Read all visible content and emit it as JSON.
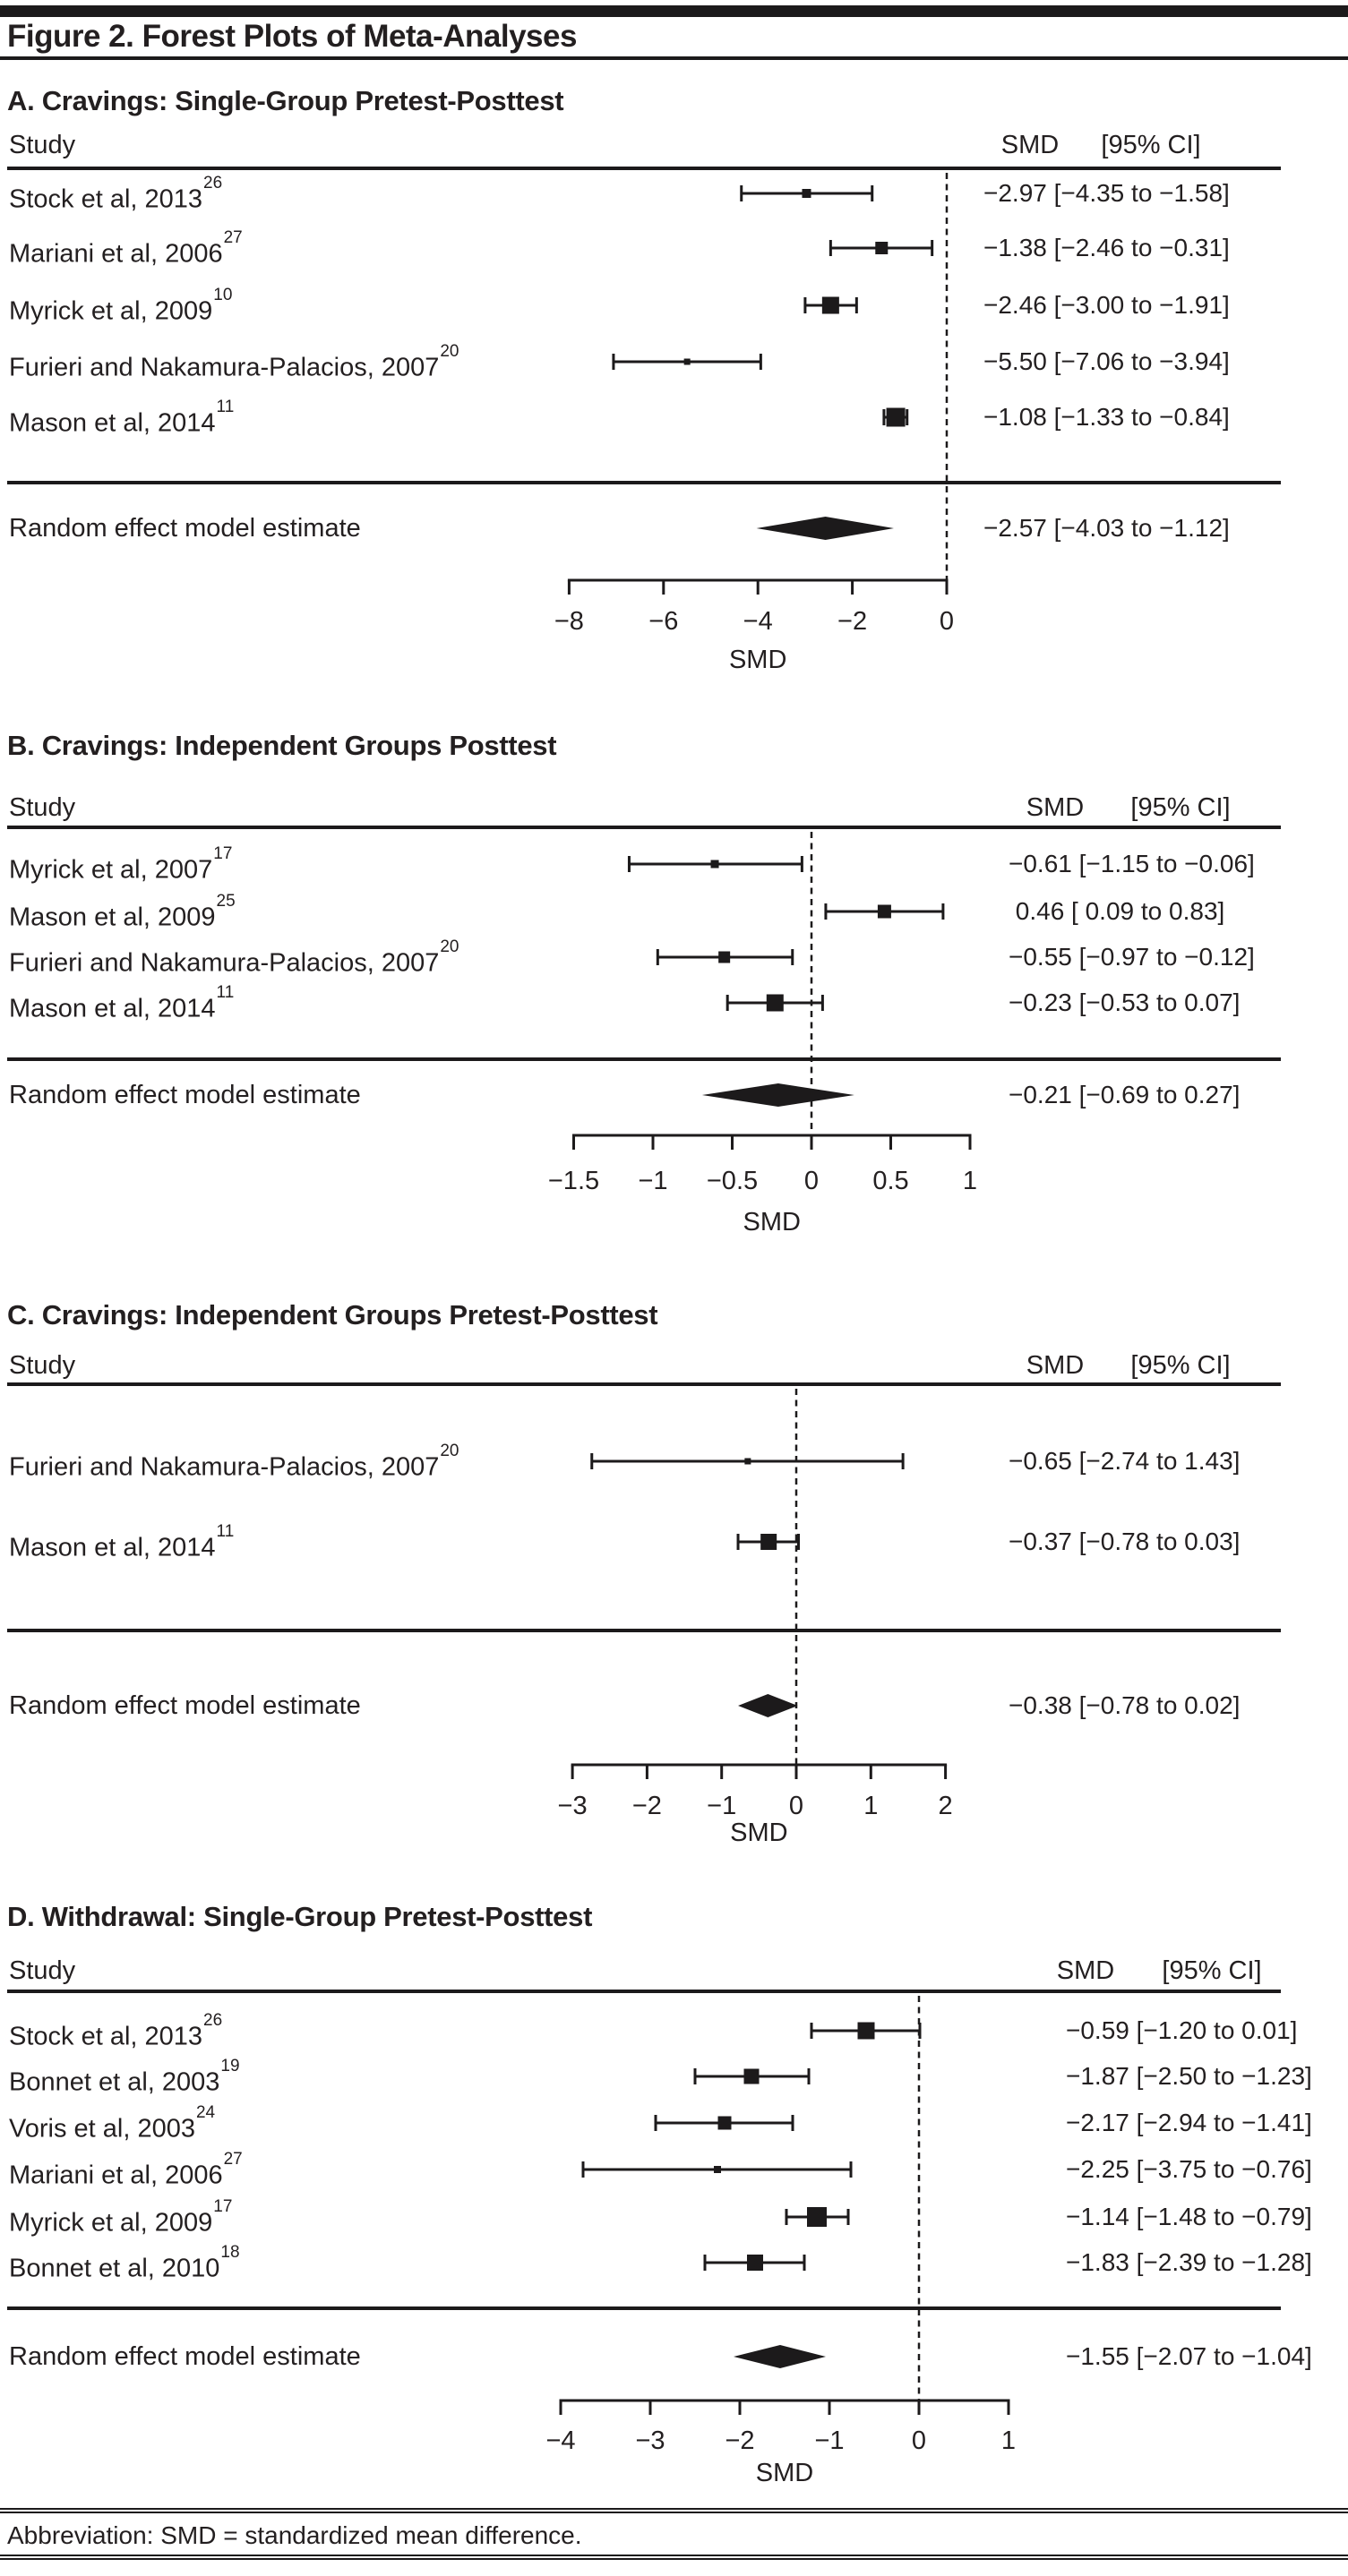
{
  "figure": {
    "title": "Figure 2. Forest Plots of Meta-Analyses",
    "footnote": "Abbreviation: SMD = standardized mean difference."
  },
  "colors": {
    "ink": "#231f20",
    "background": "#ffffff"
  },
  "chart_data": [
    {
      "type": "forest",
      "id": "A",
      "title": "A. Cravings: Single-Group Pretest-Posttest",
      "columns": {
        "study": "Study",
        "smd": "SMD",
        "ci": "[95% CI]"
      },
      "xlabel": "SMD",
      "xlim": [
        -8,
        0
      ],
      "ticks": [
        -8,
        -6,
        -4,
        -2,
        0
      ],
      "tick_labels": [
        "−8",
        "−6",
        "−4",
        "−2",
        "0"
      ],
      "zero_line": 0,
      "studies": [
        {
          "label": "Stock et al, 2013",
          "ref": "26",
          "smd": -2.97,
          "ci": [
            -4.35,
            -1.58
          ],
          "display": "−2.97 [−4.35 to −1.58]",
          "marker_size": 10
        },
        {
          "label": "Mariani et al, 2006",
          "ref": "27",
          "smd": -1.38,
          "ci": [
            -2.46,
            -0.31
          ],
          "display": "−1.38 [−2.46 to −0.31]",
          "marker_size": 14
        },
        {
          "label": "Myrick et al, 2009",
          "ref": "10",
          "smd": -2.46,
          "ci": [
            -3.0,
            -1.91
          ],
          "display": "−2.46 [−3.00 to −1.91]",
          "marker_size": 19
        },
        {
          "label": "Furieri and Nakamura-Palacios, 2007",
          "ref": "20",
          "smd": -5.5,
          "ci": [
            -7.06,
            -3.94
          ],
          "display": "−5.50 [−7.06 to −3.94]",
          "marker_size": 7
        },
        {
          "label": "Mason et al, 2014",
          "ref": "11",
          "smd": -1.08,
          "ci": [
            -1.33,
            -0.84
          ],
          "display": "−1.08 [−1.33 to −0.84]",
          "marker_size": 21
        }
      ],
      "summary": {
        "label": "Random effect model estimate",
        "smd": -2.57,
        "ci": [
          -4.03,
          -1.12
        ],
        "display": "−2.57 [−4.03 to −1.12]"
      }
    },
    {
      "type": "forest",
      "id": "B",
      "title": "B. Cravings: Independent Groups Posttest",
      "columns": {
        "study": "Study",
        "smd": "SMD",
        "ci": "[95% CI]"
      },
      "xlabel": "SMD",
      "xlim": [
        -1.5,
        1
      ],
      "ticks": [
        -1.5,
        -1,
        -0.5,
        0,
        0.5,
        1
      ],
      "tick_labels": [
        "−1.5",
        "−1",
        "−0.5",
        "0",
        "0.5",
        "1"
      ],
      "zero_line": 0,
      "studies": [
        {
          "label": "Myrick et al, 2007",
          "ref": "17",
          "smd": -0.61,
          "ci": [
            -1.15,
            -0.06
          ],
          "display": "−0.61 [−1.15 to −0.06]",
          "marker_size": 9
        },
        {
          "label": "Mason et al, 2009",
          "ref": "25",
          "smd": 0.46,
          "ci": [
            0.09,
            0.83
          ],
          "display": " 0.46 [ 0.09 to 0.83]",
          "marker_size": 15
        },
        {
          "label": "Furieri and Nakamura-Palacios, 2007",
          "ref": "20",
          "smd": -0.55,
          "ci": [
            -0.97,
            -0.12
          ],
          "display": "−0.55 [−0.97 to −0.12]",
          "marker_size": 13
        },
        {
          "label": "Mason et al, 2014",
          "ref": "11",
          "smd": -0.23,
          "ci": [
            -0.53,
            0.07
          ],
          "display": "−0.23 [−0.53 to 0.07]",
          "marker_size": 19
        }
      ],
      "summary": {
        "label": "Random effect model estimate",
        "smd": -0.21,
        "ci": [
          -0.69,
          0.27
        ],
        "display": "−0.21 [−0.69 to 0.27]"
      }
    },
    {
      "type": "forest",
      "id": "C",
      "title": "C. Cravings: Independent Groups Pretest-Posttest",
      "columns": {
        "study": "Study",
        "smd": "SMD",
        "ci": "[95% CI]"
      },
      "xlabel": "SMD",
      "xlim": [
        -3,
        2
      ],
      "ticks": [
        -3,
        -2,
        -1,
        0,
        1,
        2
      ],
      "tick_labels": [
        "−3",
        "−2",
        "−1",
        "0",
        "1",
        "2"
      ],
      "zero_line": 0,
      "studies": [
        {
          "label": "Furieri and Nakamura-Palacios, 2007",
          "ref": "20",
          "smd": -0.65,
          "ci": [
            -2.74,
            1.43
          ],
          "display": "−0.65 [−2.74 to 1.43]",
          "marker_size": 7
        },
        {
          "label": "Mason et al, 2014",
          "ref": "11",
          "smd": -0.37,
          "ci": [
            -0.78,
            0.03
          ],
          "display": "−0.37 [−0.78 to 0.03]",
          "marker_size": 18
        }
      ],
      "summary": {
        "label": "Random effect model estimate",
        "smd": -0.38,
        "ci": [
          -0.78,
          0.02
        ],
        "display": "−0.38 [−0.78 to 0.02]"
      }
    },
    {
      "type": "forest",
      "id": "D",
      "title": "D. Withdrawal: Single-Group Pretest-Posttest",
      "columns": {
        "study": "Study",
        "smd": "SMD",
        "ci": "[95% CI]"
      },
      "xlabel": "SMD",
      "xlim": [
        -4,
        1
      ],
      "ticks": [
        -4,
        -3,
        -2,
        -1,
        0,
        1
      ],
      "tick_labels": [
        "−4",
        "−3",
        "−2",
        "−1",
        "0",
        "1"
      ],
      "zero_line": 0,
      "studies": [
        {
          "label": "Stock et al, 2013",
          "ref": "26",
          "smd": -0.59,
          "ci": [
            -1.2,
            0.01
          ],
          "display": "−0.59 [−1.20 to 0.01]",
          "marker_size": 19
        },
        {
          "label": "Bonnet et al, 2003",
          "ref": "19",
          "smd": -1.87,
          "ci": [
            -2.5,
            -1.23
          ],
          "display": "−1.87 [−2.50 to −1.23]",
          "marker_size": 17
        },
        {
          "label": "Voris et al, 2003",
          "ref": "24",
          "smd": -2.17,
          "ci": [
            -2.94,
            -1.41
          ],
          "display": "−2.17 [−2.94 to −1.41]",
          "marker_size": 15
        },
        {
          "label": "Mariani et al, 2006",
          "ref": "27",
          "smd": -2.25,
          "ci": [
            -3.75,
            -0.76
          ],
          "display": "−2.25 [−3.75 to −0.76]",
          "marker_size": 8
        },
        {
          "label": "Myrick et al, 2009",
          "ref": "17",
          "smd": -1.14,
          "ci": [
            -1.48,
            -0.79
          ],
          "display": "−1.14 [−1.48 to −0.79]",
          "marker_size": 22
        },
        {
          "label": "Bonnet et al, 2010",
          "ref": "18",
          "smd": -1.83,
          "ci": [
            -2.39,
            -1.28
          ],
          "display": "−1.83 [−2.39 to −1.28]",
          "marker_size": 18
        }
      ],
      "summary": {
        "label": "Random effect model estimate",
        "smd": -1.55,
        "ci": [
          -2.07,
          -1.04
        ],
        "display": "−1.55 [−2.07 to −1.04]"
      }
    }
  ]
}
